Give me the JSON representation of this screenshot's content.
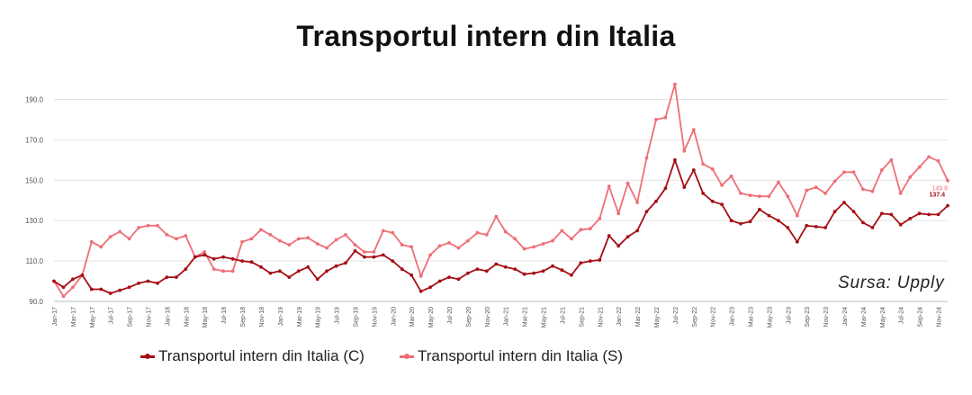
{
  "chart_data": {
    "type": "line",
    "title": "Transportul intern din Italia",
    "source": "Sursa: Upply",
    "ylim": [
      90,
      200
    ],
    "yticks": [
      90,
      110,
      130,
      150,
      170,
      190
    ],
    "ytick_labels": [
      "90.0",
      "110.0",
      "130.0",
      "150.0",
      "170.0",
      "190.0"
    ],
    "grid": true,
    "legend_position": "bottom",
    "x": [
      "Jan-17",
      "Feb-17",
      "Mar-17",
      "Apr-17",
      "May-17",
      "Jun-17",
      "Jul-17",
      "Aug-17",
      "Sep-17",
      "Oct-17",
      "Nov-17",
      "Dec-17",
      "Jan-18",
      "Feb-18",
      "Mar-18",
      "Apr-18",
      "May-18",
      "Jun-18",
      "Jul-18",
      "Aug-18",
      "Sep-18",
      "Oct-18",
      "Nov-18",
      "Dec-18",
      "Jan-19",
      "Feb-19",
      "Mar-19",
      "Apr-19",
      "May-19",
      "Jun-19",
      "Jul-19",
      "Aug-19",
      "Sep-19",
      "Oct-19",
      "Nov-19",
      "Dec-19",
      "Jan-20",
      "Feb-20",
      "Mar-20",
      "Apr-20",
      "May-20",
      "Jun-20",
      "Jul-20",
      "Aug-20",
      "Sep-20",
      "Oct-20",
      "Nov-20",
      "Dec-20",
      "Jan-21",
      "Feb-21",
      "Mar-21",
      "Apr-21",
      "May-21",
      "Jun-21",
      "Jul-21",
      "Aug-21",
      "Sep-21",
      "Oct-21",
      "Nov-21",
      "Dec-21",
      "Jan-22",
      "Feb-22",
      "Mar-22",
      "Apr-22",
      "May-22",
      "Jun-22",
      "Jul-22",
      "Aug-22",
      "Sep-22",
      "Oct-22",
      "Nov-22",
      "Dec-22",
      "Jan-23",
      "Feb-23",
      "Mar-23",
      "Apr-23",
      "May-23",
      "Jun-23",
      "Jul-23",
      "Aug-23",
      "Sep-23",
      "Oct-23",
      "Nov-23",
      "Dec-23",
      "Jan-24",
      "Feb-24",
      "Mar-24",
      "Apr-24",
      "May-24",
      "Jun-24",
      "Jul-24",
      "Aug-24",
      "Sep-24",
      "Oct-24",
      "Nov-24",
      "Dec-24"
    ],
    "tick_labels": [
      "Jan-17",
      "Mar-17",
      "May-17",
      "Jul-17",
      "Sep-17",
      "Nov-17",
      "Jan-18",
      "Mar-18",
      "May-18",
      "Jul-18",
      "Sep-18",
      "Nov-18",
      "Jan-19",
      "Mar-19",
      "May-19",
      "Jul-19",
      "Sep-19",
      "Nov-19",
      "Jan-20",
      "Mar-20",
      "May-20",
      "Jul-20",
      "Sep-20",
      "Nov-20",
      "Jan-21",
      "Mar-21",
      "May-21",
      "Jul-21",
      "Sep-21",
      "Nov-21",
      "Jan-22",
      "Mar-22",
      "May-22",
      "Jul-22",
      "Sep-22",
      "Nov-22",
      "Jan-23",
      "Mar-23",
      "May-23",
      "Jul-23",
      "Sep-23",
      "Nov-23",
      "Jan-24",
      "Mar-24",
      "May-24",
      "Jul-24",
      "Sep-24",
      "Nov-24"
    ],
    "series": [
      {
        "name": "Transportul intern din Italia (C)",
        "color": "#a50f15",
        "end_label": "137.4",
        "values": [
          100,
          97,
          101,
          103,
          96,
          96,
          94,
          95.5,
          97,
          99,
          100,
          99,
          102,
          102,
          106,
          112,
          113,
          111,
          112,
          111,
          110,
          109.5,
          107,
          104,
          105,
          102,
          105,
          107,
          101,
          105,
          107.5,
          109,
          115,
          112,
          112,
          113,
          110,
          106,
          103,
          95,
          97,
          100,
          102,
          101,
          104,
          106,
          105,
          108.5,
          107,
          106,
          103.5,
          104,
          105,
          107.5,
          105.5,
          103,
          109,
          110,
          110.5,
          122.5,
          117.5,
          122,
          125,
          134.5,
          139.5,
          146,
          160,
          146.5,
          155,
          143.5,
          139.5,
          138,
          130,
          128.5,
          129.5,
          135.5,
          132.5,
          130,
          126.5,
          119.5,
          127.5,
          127,
          126.5,
          134.5,
          139,
          134.5,
          129,
          126.5,
          133.5,
          133,
          128,
          131,
          133.5,
          133,
          133,
          137.4
        ]
      },
      {
        "name": "Transportul intern din Italia (S)",
        "color": "#ee6f77",
        "end_label": "149.8",
        "values": [
          100,
          92.5,
          97,
          103,
          119.5,
          117,
          122,
          124.5,
          121,
          126.5,
          127.5,
          127.5,
          123,
          121,
          122.5,
          112,
          114.5,
          106,
          105,
          105,
          119.5,
          121,
          125.5,
          123,
          120,
          118,
          121,
          121.5,
          118.5,
          116.5,
          120.5,
          123,
          118,
          114.5,
          114.5,
          125,
          124,
          118,
          117,
          102.5,
          113,
          117.5,
          119,
          116.5,
          120,
          124,
          123,
          132,
          124.5,
          121,
          116,
          117,
          118.5,
          120,
          125,
          121,
          125.5,
          126,
          131,
          147,
          133.5,
          148.5,
          139,
          161,
          180,
          181,
          197.5,
          164.5,
          175,
          158,
          155.5,
          147.5,
          152,
          143.5,
          142.5,
          142,
          142,
          149,
          142,
          132.5,
          145,
          146.5,
          143.5,
          149.5,
          154,
          154,
          145.5,
          144.5,
          155,
          160,
          143.5,
          151.5,
          156.5,
          161.5,
          159.5,
          149.8
        ]
      }
    ]
  }
}
